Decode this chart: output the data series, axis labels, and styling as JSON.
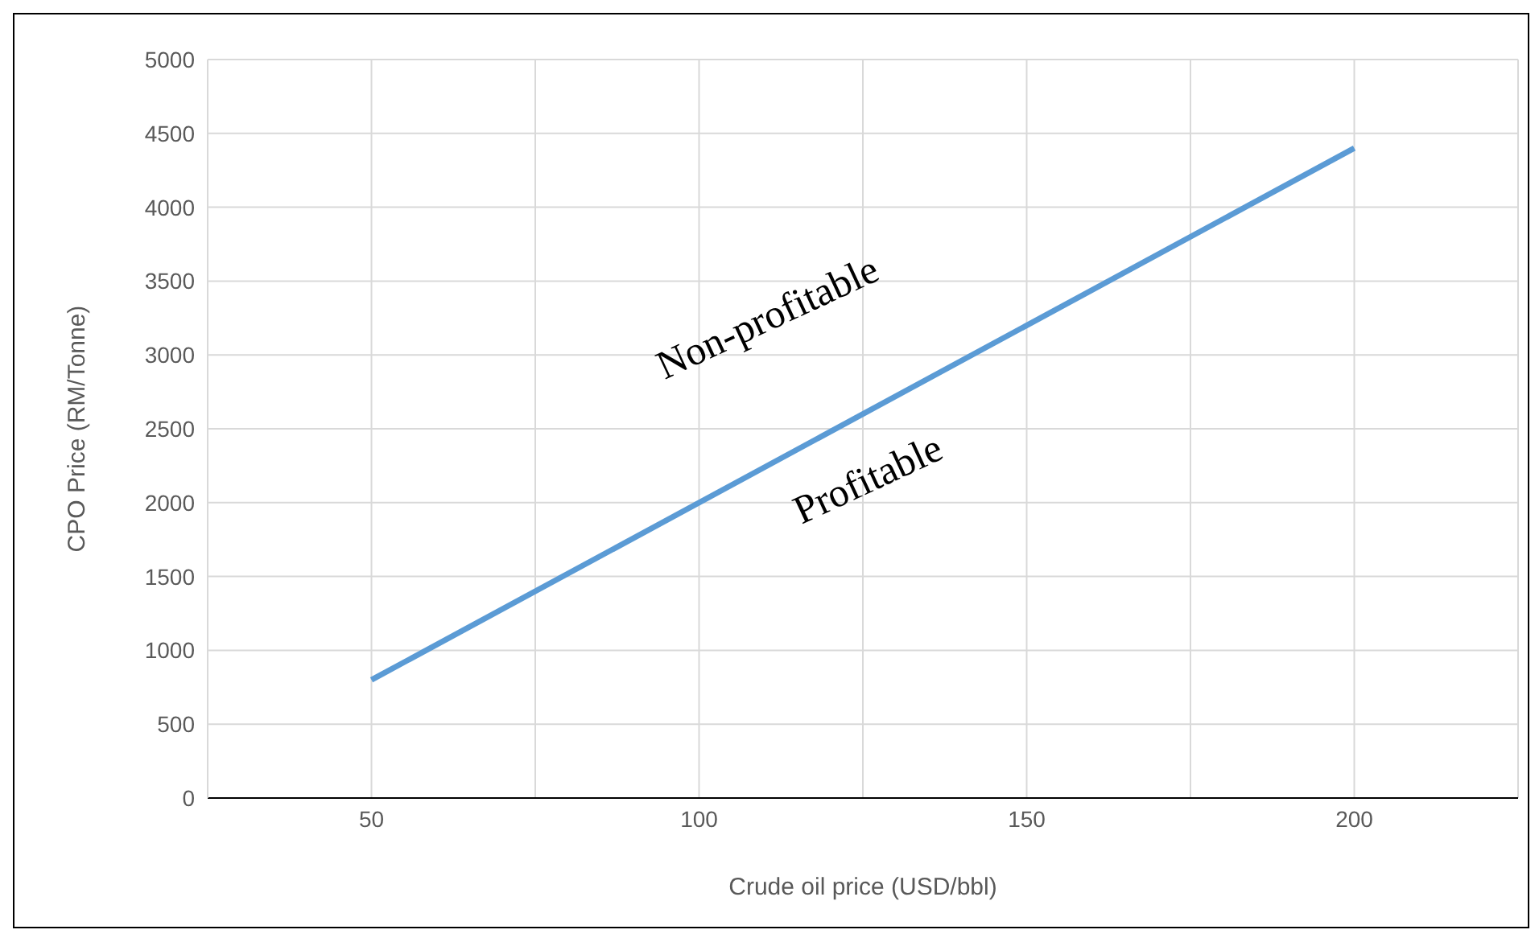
{
  "chart_data": {
    "type": "line",
    "xlabel": "Crude oil price (USD/bbl)",
    "ylabel": "CPO  Price (RM/Tonne)",
    "x": [
      50,
      200
    ],
    "series": [
      {
        "color": "#5b9bd5",
        "values": [
          800,
          4400
        ]
      }
    ],
    "xlim": [
      25,
      225
    ],
    "xticks": [
      {
        "value": 25,
        "label": null
      },
      50,
      {
        "value": 75,
        "label": null
      },
      100,
      {
        "value": 125,
        "label": null
      },
      150,
      {
        "value": 175,
        "label": null
      },
      200,
      {
        "value": 225,
        "label": null
      }
    ],
    "ylim": [
      0,
      5000
    ],
    "yticks": [
      0,
      500,
      1000,
      1500,
      2000,
      2500,
      3000,
      3500,
      4000,
      4500,
      5000
    ],
    "grid": true,
    "marker": "none",
    "line_style": "solid",
    "annotations": [
      "Non-profitable",
      "Profitable"
    ]
  }
}
